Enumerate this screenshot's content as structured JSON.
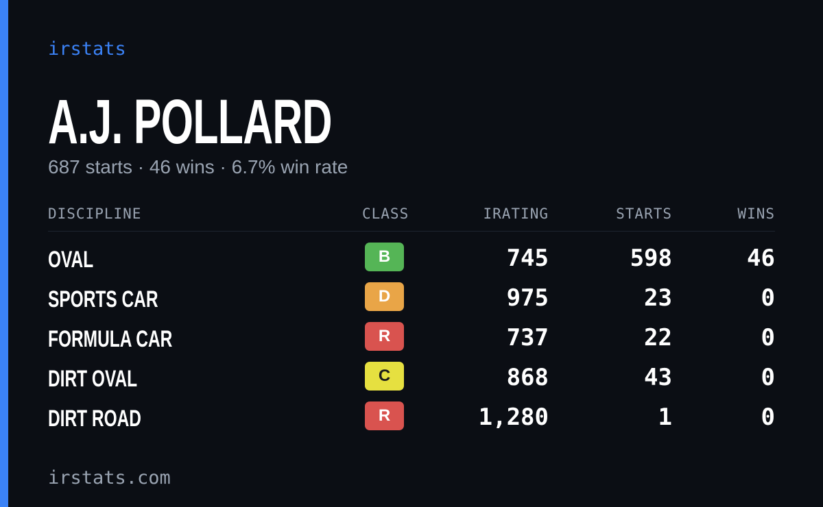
{
  "header": {
    "brand": "irstats",
    "name": "A.J. POLLARD",
    "summary": "687 starts · 46 wins · 6.7% win rate"
  },
  "table": {
    "columns": [
      "DISCIPLINE",
      "CLASS",
      "IRATING",
      "STARTS",
      "WINS"
    ],
    "rows": [
      [
        "OVAL",
        "B",
        "745",
        "598",
        "46"
      ],
      [
        "SPORTS CAR",
        "D",
        "975",
        "23",
        "0"
      ],
      [
        "FORMULA CAR",
        "R",
        "737",
        "22",
        "0"
      ],
      [
        "DIRT OVAL",
        "C",
        "868",
        "43",
        "0"
      ],
      [
        "DIRT ROAD",
        "R",
        "1,280",
        "1",
        "0"
      ]
    ]
  },
  "footer": {
    "url": "irstats.com"
  }
}
